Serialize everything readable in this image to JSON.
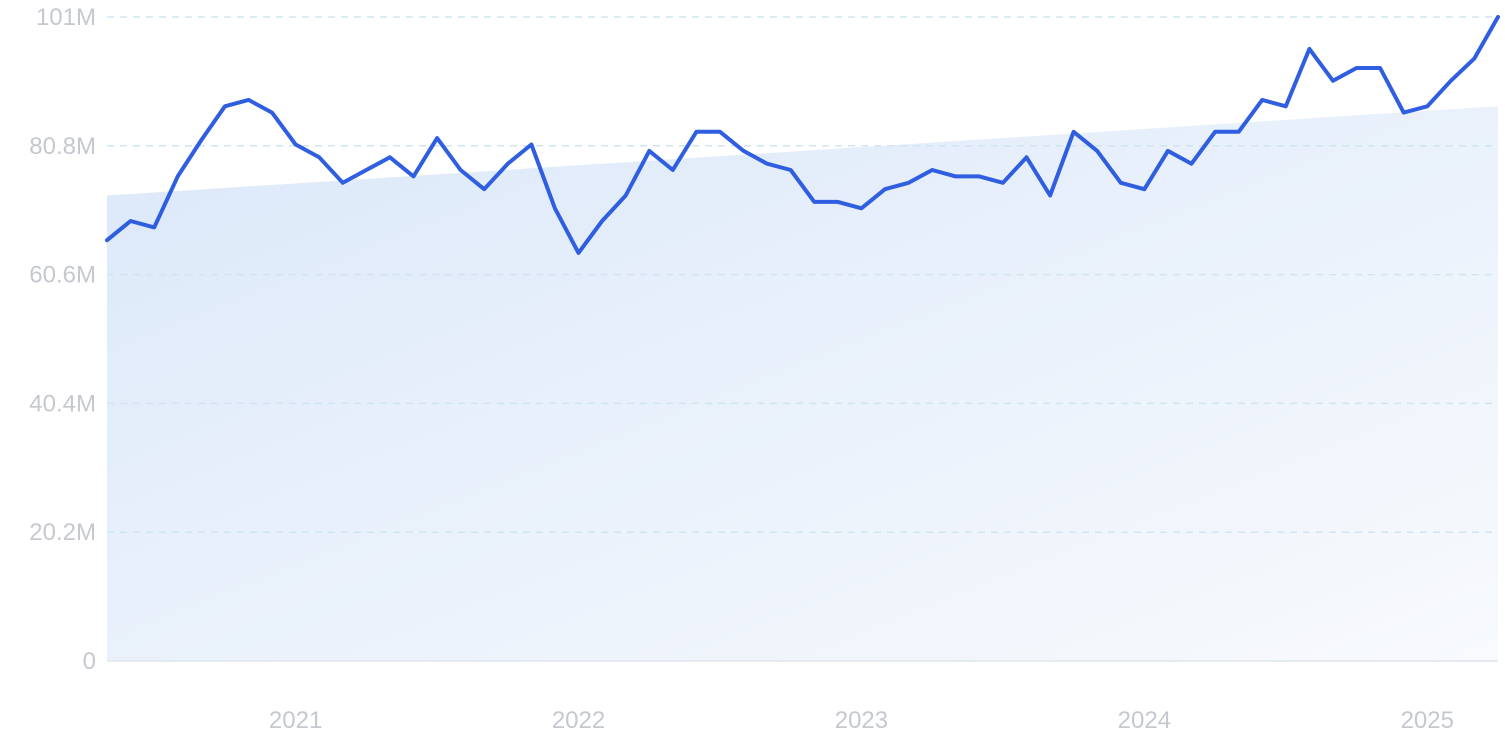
{
  "chart_data": {
    "type": "line",
    "title": "",
    "xlabel": "",
    "ylabel": "",
    "x_tick_labels": [
      "2021",
      "2022",
      "2023",
      "2024",
      "2025"
    ],
    "y_tick_labels": [
      "0",
      "20.2M",
      "40.4M",
      "60.6M",
      "80.8M",
      "101M"
    ],
    "ylim": [
      0,
      101000000
    ],
    "grid": true,
    "legend": "none",
    "series": [
      {
        "x": [
          "2020-05",
          "2020-06",
          "2020-07",
          "2020-08",
          "2020-09",
          "2020-10",
          "2020-11",
          "2020-12",
          "2021-01",
          "2021-02",
          "2021-03",
          "2021-04",
          "2021-05",
          "2021-06",
          "2021-07",
          "2021-08",
          "2021-09",
          "2021-10",
          "2021-11",
          "2021-12",
          "2022-01",
          "2022-02",
          "2022-03",
          "2022-04",
          "2022-05",
          "2022-06",
          "2022-07",
          "2022-08",
          "2022-09",
          "2022-10",
          "2022-11",
          "2022-12",
          "2023-01",
          "2023-02",
          "2023-03",
          "2023-04",
          "2023-05",
          "2023-06",
          "2023-07",
          "2023-08",
          "2023-09",
          "2023-10",
          "2023-11",
          "2023-12",
          "2024-01",
          "2024-02",
          "2024-03",
          "2024-04",
          "2024-05",
          "2024-06",
          "2024-07",
          "2024-08",
          "2024-09",
          "2024-10",
          "2024-11",
          "2024-12",
          "2025-01",
          "2025-02",
          "2025-03",
          "2025-04"
        ],
        "values": [
          66000000,
          69000000,
          68000000,
          76000000,
          81700000,
          87000000,
          88000000,
          86000000,
          81000000,
          79000000,
          75000000,
          77000000,
          79000000,
          76000000,
          82000000,
          77000000,
          74000000,
          78000000,
          81000000,
          71000000,
          64000000,
          69000000,
          73000000,
          80000000,
          77000000,
          83000000,
          83000000,
          80000000,
          78000000,
          77000000,
          72000000,
          72000000,
          71000000,
          74000000,
          75000000,
          77000000,
          76000000,
          76000000,
          75000000,
          79000000,
          73000000,
          83000000,
          80000000,
          75000000,
          74000000,
          80000000,
          78000000,
          83000000,
          83000000,
          88000000,
          87000000,
          96000000,
          91000000,
          93000000,
          93000000,
          86000000,
          87000000,
          91000000,
          94500000,
          101000000
        ]
      },
      {
        "type": "area",
        "x": [
          "2020-05",
          "2025-04"
        ],
        "values": [
          73000000,
          87000000
        ]
      }
    ],
    "colors": {
      "line": "#2f5ee0",
      "area_start": "#dbe8f9",
      "area_end": "#f8fafd",
      "grid": "#cfe6f2",
      "axis": "#dde5ec",
      "tick_text": "#c5c9cf"
    }
  }
}
